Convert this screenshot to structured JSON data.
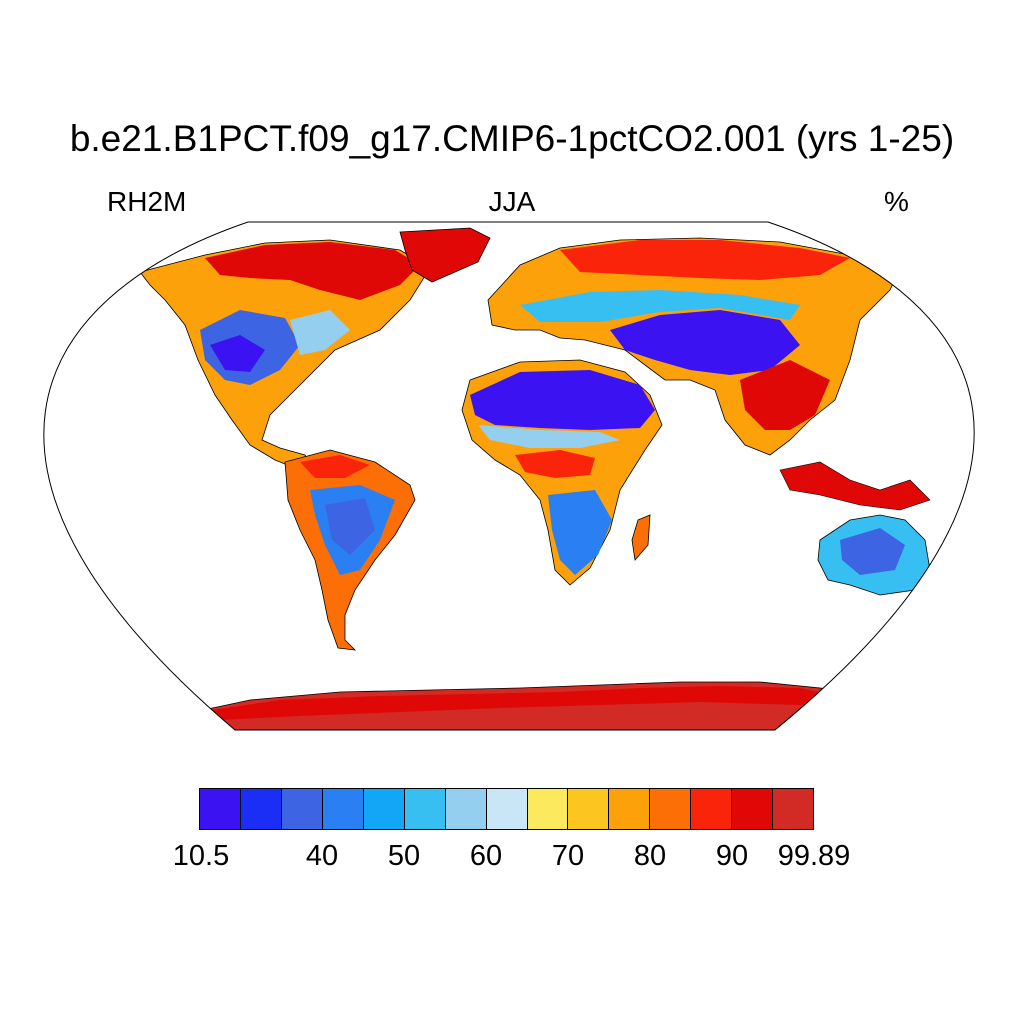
{
  "header": {
    "title": "b.e21.B1PCT.f09_g17.CMIP6-1pctCO2.001 (yrs 1-25)",
    "left_label": "RH2M",
    "center_label": "JJA",
    "right_label": "%"
  },
  "colorbar": {
    "colors": [
      "#3b12f2",
      "#1a2ef5",
      "#3d64e3",
      "#2a7ff2",
      "#12a6f7",
      "#38bff2",
      "#94cfef",
      "#c9e6f7",
      "#fde95e",
      "#fcc51f",
      "#fca10a",
      "#fb6f06",
      "#f9240a",
      "#e00806",
      "#d22a24"
    ],
    "labels": [
      "10.5",
      "40",
      "50",
      "60",
      "70",
      "80",
      "90",
      "99.89"
    ]
  },
  "map": {
    "projection": "Robinson",
    "variable": "relative humidity 2m",
    "season": "JJA",
    "ocean_color": "#ffffff"
  }
}
